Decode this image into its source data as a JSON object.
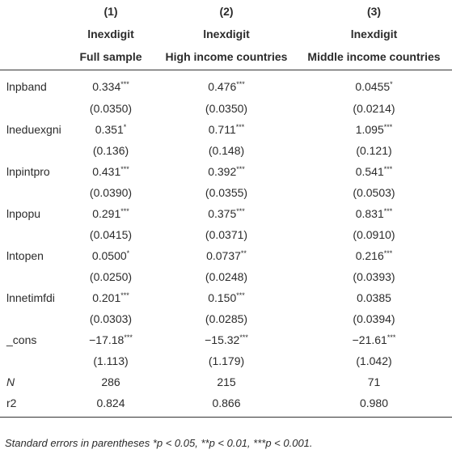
{
  "columns": [
    {
      "number": "(1)",
      "dependent": "lnexdigit",
      "sample": "Full sample"
    },
    {
      "number": "(2)",
      "dependent": "lnexdigit",
      "sample": "High income countries"
    },
    {
      "number": "(3)",
      "dependent": "lnexdigit",
      "sample": "Middle income countries"
    }
  ],
  "variables": [
    {
      "label": "lnpband",
      "coef": [
        {
          "value": "0.334",
          "stars": "***"
        },
        {
          "value": "0.476",
          "stars": "***"
        },
        {
          "value": "0.0455",
          "stars": "*"
        }
      ],
      "se": [
        "(0.0350)",
        "(0.0350)",
        "(0.0214)"
      ]
    },
    {
      "label": "lneduexgni",
      "coef": [
        {
          "value": "0.351",
          "stars": "*"
        },
        {
          "value": "0.711",
          "stars": "***"
        },
        {
          "value": "1.095",
          "stars": "***"
        }
      ],
      "se": [
        "(0.136)",
        "(0.148)",
        "(0.121)"
      ]
    },
    {
      "label": "lnpintpro",
      "coef": [
        {
          "value": "0.431",
          "stars": "***"
        },
        {
          "value": "0.392",
          "stars": "***"
        },
        {
          "value": "0.541",
          "stars": "***"
        }
      ],
      "se": [
        "(0.0390)",
        "(0.0355)",
        "(0.0503)"
      ]
    },
    {
      "label": "lnpopu",
      "coef": [
        {
          "value": "0.291",
          "stars": "***"
        },
        {
          "value": "0.375",
          "stars": "***"
        },
        {
          "value": "0.831",
          "stars": "***"
        }
      ],
      "se": [
        "(0.0415)",
        "(0.0371)",
        "(0.0910)"
      ]
    },
    {
      "label": "lntopen",
      "coef": [
        {
          "value": "0.0500",
          "stars": "*"
        },
        {
          "value": "0.0737",
          "stars": "**"
        },
        {
          "value": "0.216",
          "stars": "***"
        }
      ],
      "se": [
        "(0.0250)",
        "(0.0248)",
        "(0.0393)"
      ]
    },
    {
      "label": "lnnetimfdi",
      "coef": [
        {
          "value": "0.201",
          "stars": "***"
        },
        {
          "value": "0.150",
          "stars": "***"
        },
        {
          "value": "0.0385"
        }
      ],
      "se": [
        "(0.0303)",
        "(0.0285)",
        "(0.0394)"
      ]
    },
    {
      "label": "_cons",
      "coef": [
        {
          "value": "−17.18",
          "stars": "***"
        },
        {
          "value": "−15.32",
          "stars": "***"
        },
        {
          "value": "−21.61",
          "stars": "***"
        }
      ],
      "se": [
        "(1.113)",
        "(1.179)",
        "(1.042)"
      ]
    }
  ],
  "stats": [
    {
      "label": "N",
      "italic": true,
      "values": [
        "286",
        "215",
        "71"
      ]
    },
    {
      "label": "r2",
      "values": [
        "0.824",
        "0.866",
        "0.980"
      ]
    }
  ],
  "footnote": "Standard errors in parentheses *p < 0.05, **p < 0.01, ***p < 0.001."
}
